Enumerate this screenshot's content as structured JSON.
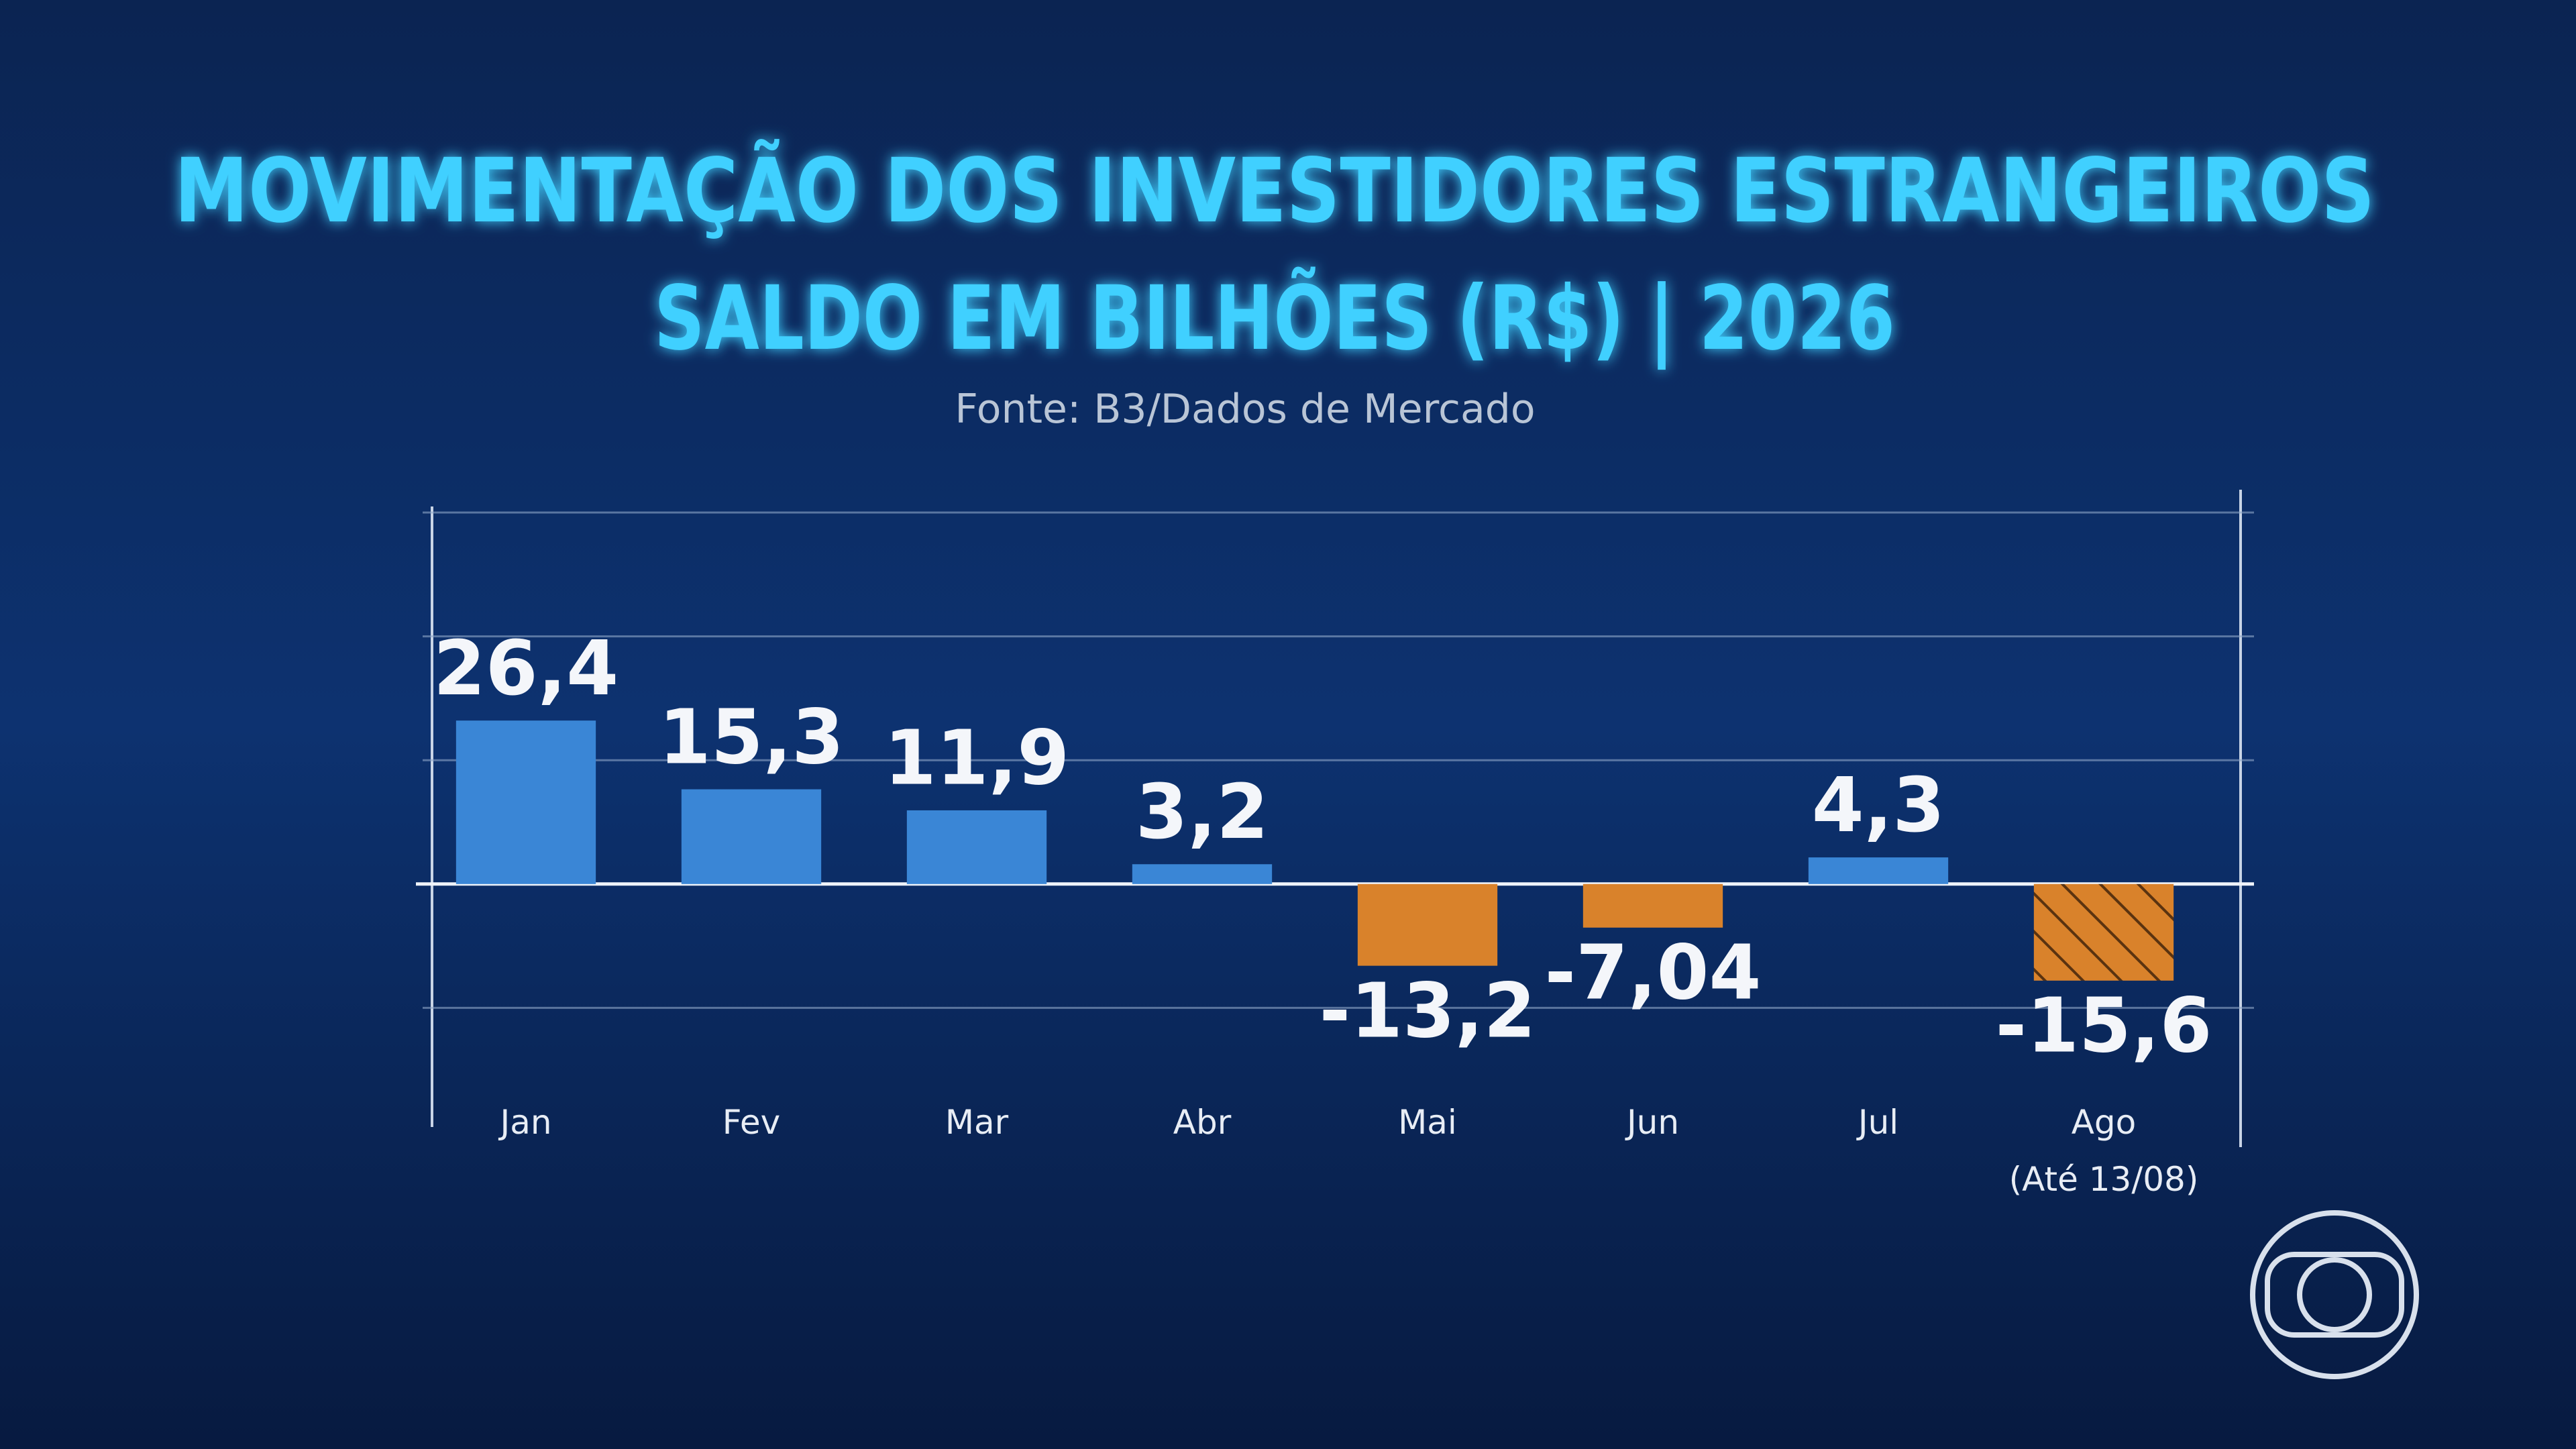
{
  "chart_data": {
    "type": "bar",
    "title": [
      "MOVIMENTAÇÃO DOS INVESTIDORES ESTRANGEIROS",
      "SALDO EM BILHÕES (R$) | 2026"
    ],
    "subtitle": "Fonte: B3/Dados de Mercado",
    "categories": [
      "Jan",
      "Fev",
      "Mar",
      "Abr",
      "Mai",
      "Jun",
      "Jul",
      "Ago"
    ],
    "category_note": "(Até 13/08)",
    "values": [
      26.4,
      15.3,
      11.9,
      3.2,
      -13.2,
      -7.04,
      4.3,
      -15.6
    ],
    "value_labels": [
      "26,4",
      "15,3",
      "11,9",
      "3,2",
      "-13,2",
      "-7,04",
      "4,3",
      "-15,6"
    ],
    "colors": [
      "#3a86d6",
      "#3a86d6",
      "#3a86d6",
      "#3a86d6",
      "#d9822b",
      "#d9822b",
      "#3a86d6",
      "#d9822b"
    ],
    "hatched": [
      false,
      false,
      false,
      false,
      false,
      false,
      false,
      true
    ],
    "ylim": [
      -40,
      60
    ],
    "yticks": [
      -20,
      0,
      20,
      40,
      60
    ],
    "grid": true
  }
}
